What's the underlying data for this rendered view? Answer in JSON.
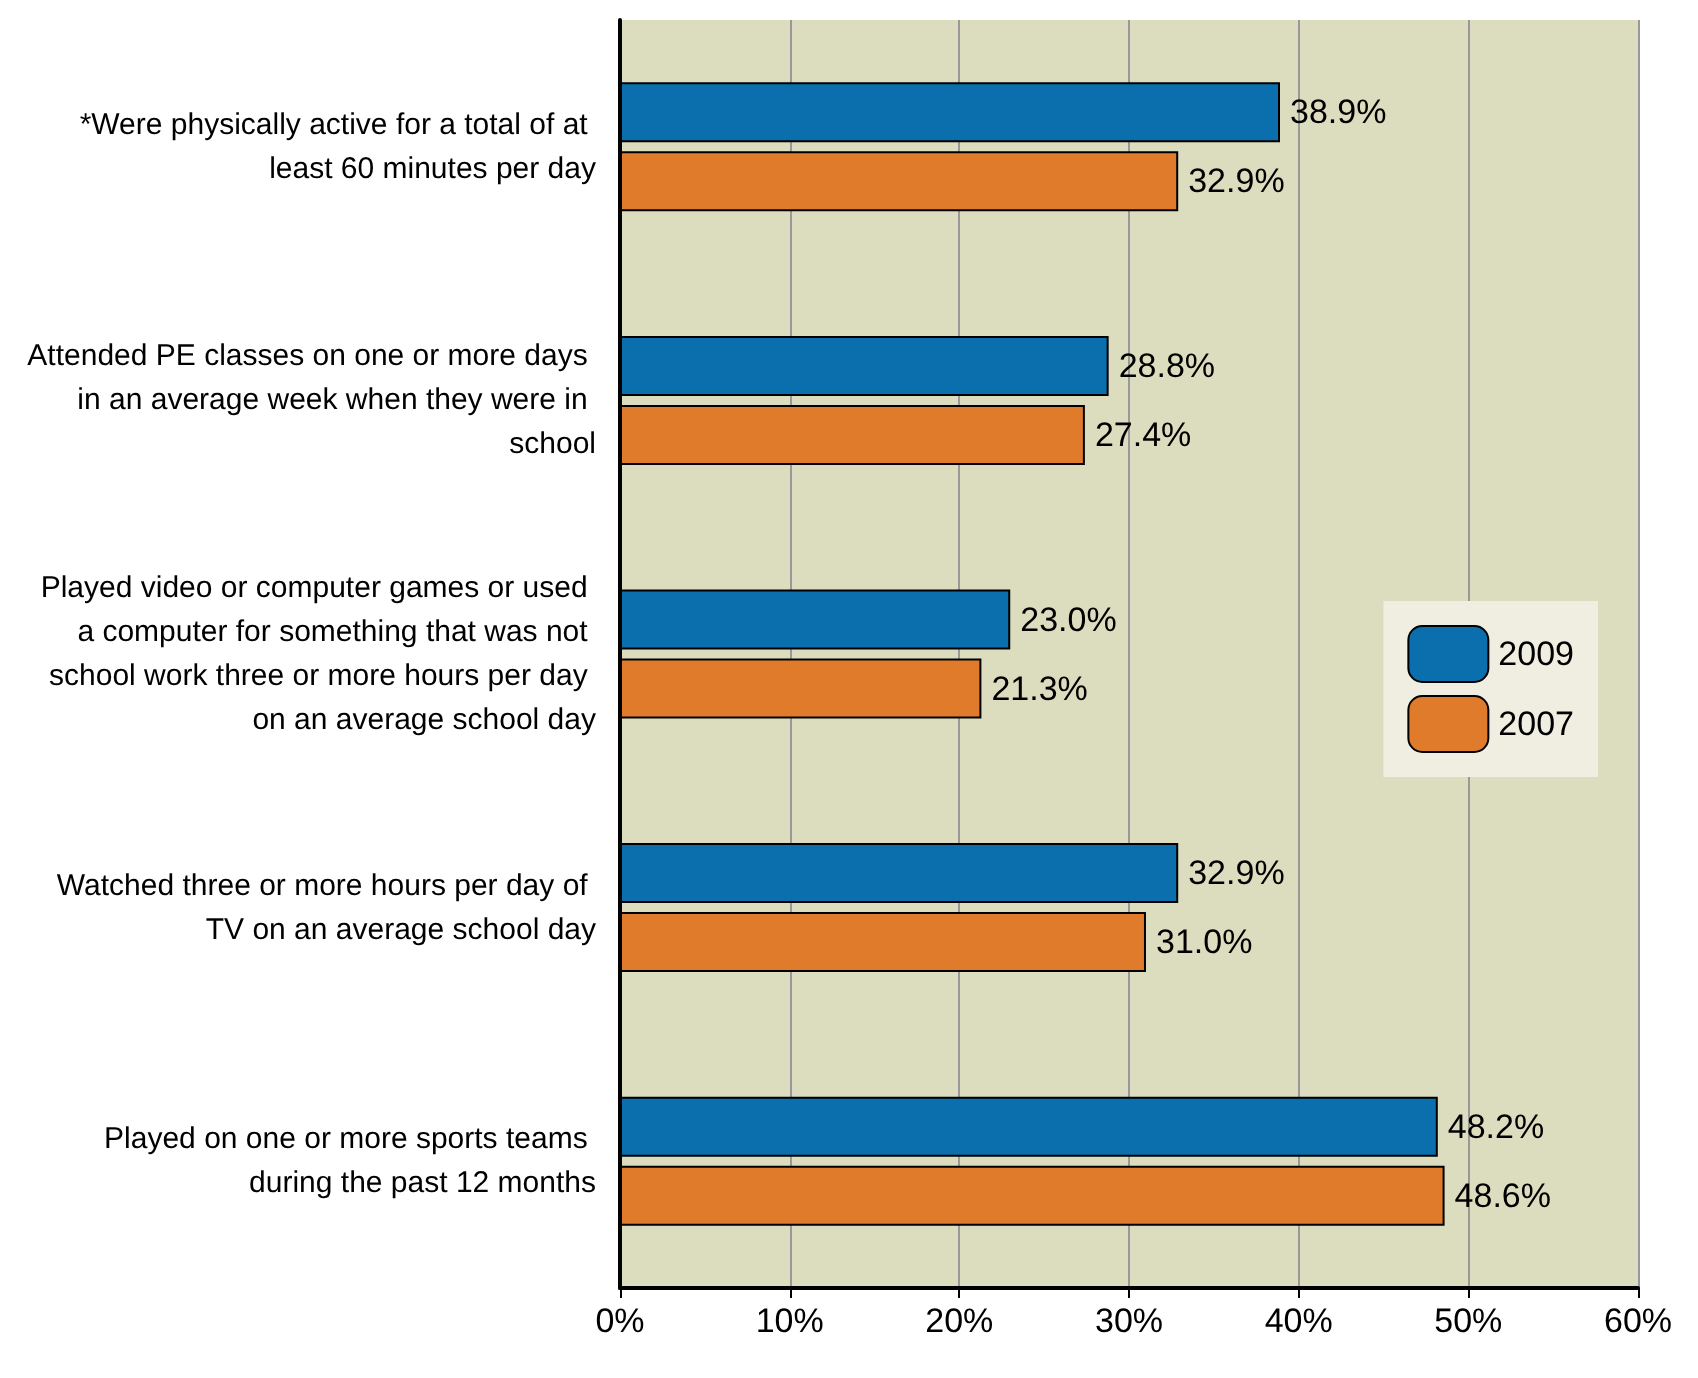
{
  "chart_data": {
    "type": "bar",
    "orientation": "horizontal",
    "categories": [
      "*Were physically active for a total of at least 60 minutes per day",
      "Attended PE classes on one or more days in an average week when they were in school",
      "Played video or computer games or used a computer for something that was not school work three or more hours per day on an average school day",
      "Watched three or more hours per day of TV on an average school day",
      "Played on one or more sports teams during the past 12 months"
    ],
    "series": [
      {
        "name": "2009",
        "color": "#0b6fae",
        "values": [
          38.9,
          28.8,
          23.0,
          32.9,
          48.2
        ],
        "value_labels": [
          "38.9%",
          "28.8%",
          "23.0%",
          "32.9%",
          "48.2%"
        ]
      },
      {
        "name": "2007",
        "color": "#e07b2b",
        "values": [
          32.9,
          27.4,
          21.3,
          31.0,
          48.6
        ],
        "value_labels": [
          "32.9%",
          "27.4%",
          "21.3%",
          "31.0%",
          "48.6%"
        ]
      }
    ],
    "xlim": [
      0,
      60
    ],
    "xticks": [
      {
        "value": 0,
        "label": "0%"
      },
      {
        "value": 10,
        "label": "10%"
      },
      {
        "value": 20,
        "label": "20%"
      },
      {
        "value": 30,
        "label": "30%"
      },
      {
        "value": 40,
        "label": "40%"
      },
      {
        "value": 50,
        "label": "50%"
      },
      {
        "value": 60,
        "label": "60%"
      }
    ],
    "grid": "x",
    "legend": "right"
  }
}
